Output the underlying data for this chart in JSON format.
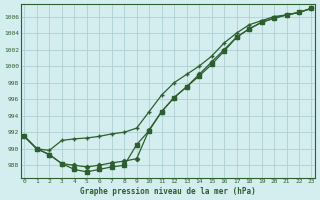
{
  "xlabel": "Graphe pression niveau de la mer (hPa)",
  "background_color": "#d4eef0",
  "grid_color": "#b0d0d4",
  "line_color": "#2d5e2d",
  "xlim": [
    -0.3,
    23.3
  ],
  "ylim": [
    986.5,
    1007.5
  ],
  "yticks": [
    988,
    990,
    992,
    994,
    996,
    998,
    1000,
    1002,
    1004,
    1006
  ],
  "xticks": [
    0,
    1,
    2,
    3,
    4,
    5,
    6,
    7,
    8,
    9,
    10,
    11,
    12,
    13,
    14,
    15,
    16,
    17,
    18,
    19,
    20,
    21,
    22,
    23
  ],
  "line1_x": [
    0,
    1,
    2,
    3,
    4,
    5,
    6,
    7,
    8,
    9,
    10,
    11,
    12,
    13,
    14,
    15,
    16,
    17,
    18,
    19,
    20,
    21,
    22,
    23
  ],
  "line1_y": [
    991.5,
    990.0,
    989.8,
    991.0,
    991.2,
    991.3,
    991.5,
    991.8,
    992.0,
    992.5,
    994.5,
    996.5,
    998.0,
    999.0,
    1000.0,
    1001.2,
    1002.8,
    1004.0,
    1005.0,
    1005.5,
    1006.0,
    1006.2,
    1006.5,
    1007.0
  ],
  "line2_x": [
    0,
    1,
    2,
    3,
    4,
    5,
    6,
    7,
    8,
    9,
    10,
    11,
    12,
    13,
    14,
    15,
    16,
    17,
    18,
    19,
    20,
    21,
    22,
    23
  ],
  "line2_y": [
    991.5,
    990.0,
    989.3,
    988.2,
    988.0,
    987.8,
    988.0,
    988.3,
    988.5,
    988.8,
    992.3,
    994.5,
    996.2,
    997.5,
    999.0,
    1000.5,
    1002.0,
    1003.5,
    1004.5,
    1005.3,
    1005.8,
    1006.2,
    1006.5,
    1007.0
  ],
  "line3_x": [
    0,
    1,
    2,
    3,
    4,
    5,
    6,
    7,
    8,
    9,
    10,
    11,
    12,
    13,
    14,
    15,
    16,
    17,
    18,
    19,
    20,
    21,
    22,
    23
  ],
  "line3_y": [
    991.5,
    990.0,
    989.3,
    988.2,
    987.5,
    987.2,
    987.5,
    987.8,
    988.0,
    990.5,
    992.2,
    994.5,
    996.2,
    997.5,
    998.8,
    1000.2,
    1001.8,
    1003.5,
    1004.5,
    1005.3,
    1005.8,
    1006.2,
    1006.5,
    1007.0
  ]
}
